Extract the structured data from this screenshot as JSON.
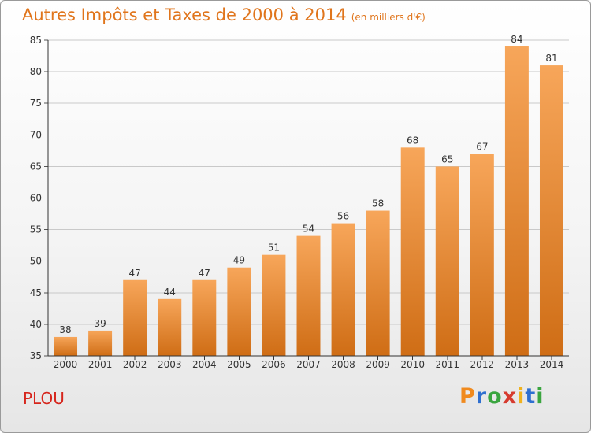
{
  "header": {
    "title": "Autres Impôts et Taxes de 2000 à 2014",
    "subtitle": "(en milliers d'€)"
  },
  "footer": {
    "place": "PLOU",
    "brand": "Proxiti"
  },
  "colors": {
    "bar_top": "#f7a65a",
    "bar_bottom": "#cf6d15",
    "accent": "#e0751c",
    "place": "#d6261d"
  },
  "chart_data": {
    "type": "bar",
    "title": "Autres Impôts et Taxes de 2000 à 2014",
    "subtitle": "(en milliers d'€)",
    "xlabel": "",
    "ylabel": "",
    "categories": [
      "2000",
      "2001",
      "2002",
      "2003",
      "2004",
      "2005",
      "2006",
      "2007",
      "2008",
      "2009",
      "2010",
      "2011",
      "2012",
      "2013",
      "2014"
    ],
    "values": [
      38,
      39,
      47,
      44,
      47,
      49,
      51,
      54,
      56,
      58,
      68,
      65,
      67,
      84,
      81
    ],
    "ylim": [
      35,
      85
    ],
    "yticks": [
      35,
      40,
      45,
      50,
      55,
      60,
      65,
      70,
      75,
      80,
      85
    ],
    "grid": true,
    "data_labels": true
  }
}
